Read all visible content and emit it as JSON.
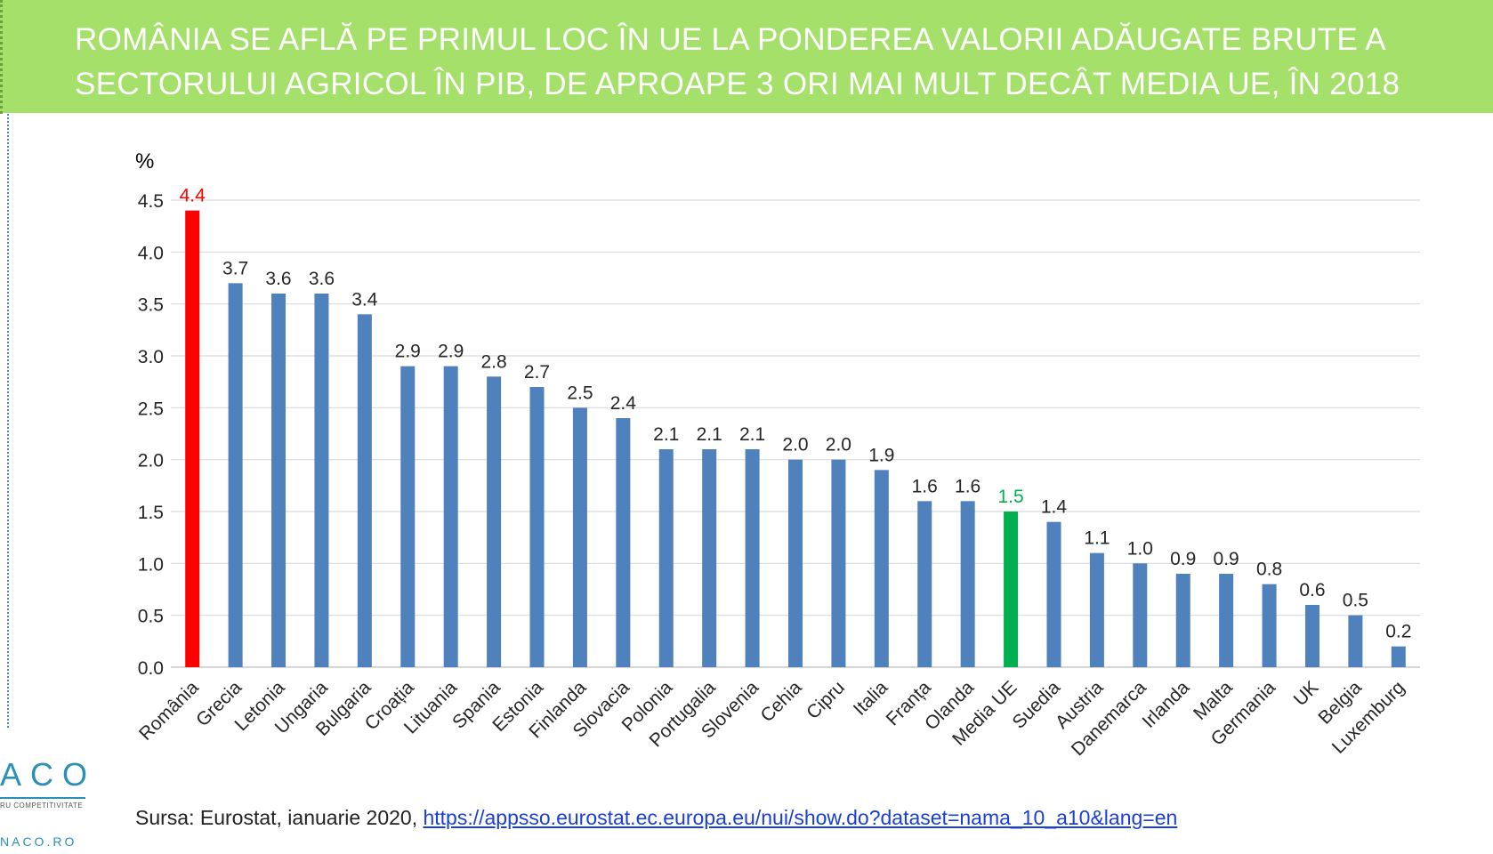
{
  "banner": {
    "title_line1": "ROMÂNIA SE AFLĂ PE PRIMUL LOC ÎN UE LA PONDEREA VALORII ADĂUGATE BRUTE A",
    "title_line2": "SECTORULUI AGRICOL ÎN PIB, DE APROAPE 3 ORI MAI MULT DECÂT MEDIA UE, ÎN 2018"
  },
  "colors": {
    "banner": "#a4e06a",
    "bar_default": "#4f81bd",
    "bar_highlight_romania": "#ff0000",
    "bar_highlight_eu": "#00b050",
    "label_default": "#262626",
    "grid": "#d9d9d9"
  },
  "chart_data": {
    "type": "bar",
    "ylabel": "%",
    "ylim": [
      0,
      4.5
    ],
    "yticks": [
      "0.0",
      "0.5",
      "1.0",
      "1.5",
      "2.0",
      "2.5",
      "3.0",
      "3.5",
      "4.0",
      "4.5"
    ],
    "grid": true,
    "categories": [
      "România",
      "Grecia",
      "Letonia",
      "Ungaria",
      "Bulgaria",
      "Croația",
      "Lituania",
      "Spania",
      "Estonia",
      "Finlanda",
      "Slovacia",
      "Polonia",
      "Portugalia",
      "Slovenia",
      "Cehia",
      "Cipru",
      "Italia",
      "Franța",
      "Olanda",
      "Media UE",
      "Suedia",
      "Austria",
      "Danemarca",
      "Irlanda",
      "Malta",
      "Germania",
      "UK",
      "Belgia",
      "Luxemburg"
    ],
    "values": [
      4.4,
      3.7,
      3.6,
      3.6,
      3.4,
      2.9,
      2.9,
      2.8,
      2.7,
      2.5,
      2.4,
      2.1,
      2.1,
      2.1,
      2.0,
      2.0,
      1.9,
      1.6,
      1.6,
      1.5,
      1.4,
      1.1,
      1.0,
      0.9,
      0.9,
      0.8,
      0.6,
      0.5,
      0.2
    ],
    "value_labels": [
      "4.4",
      "3.7",
      "3.6",
      "3.6",
      "3.4",
      "2.9",
      "2.9",
      "2.8",
      "2.7",
      "2.5",
      "2.4",
      "2.1",
      "2.1",
      "2.1",
      "2.0",
      "2.0",
      "1.9",
      "1.6",
      "1.6",
      "1.5",
      "1.4",
      "1.1",
      "1.0",
      "0.9",
      "0.9",
      "0.8",
      "0.6",
      "0.5",
      "0.2"
    ],
    "highlights": {
      "România": "bar_highlight_romania",
      "Media UE": "bar_highlight_eu"
    }
  },
  "logo": {
    "mark": "ACO",
    "tagline": "RU COMPETITIVITATE",
    "website": "NACO.RO"
  },
  "source": {
    "prefix": "Sursa: Eurostat, ianuarie 2020, ",
    "link_text": "https://appsso.eurostat.ec.europa.eu/nui/show.do?dataset=nama_10_a10&lang=en"
  }
}
